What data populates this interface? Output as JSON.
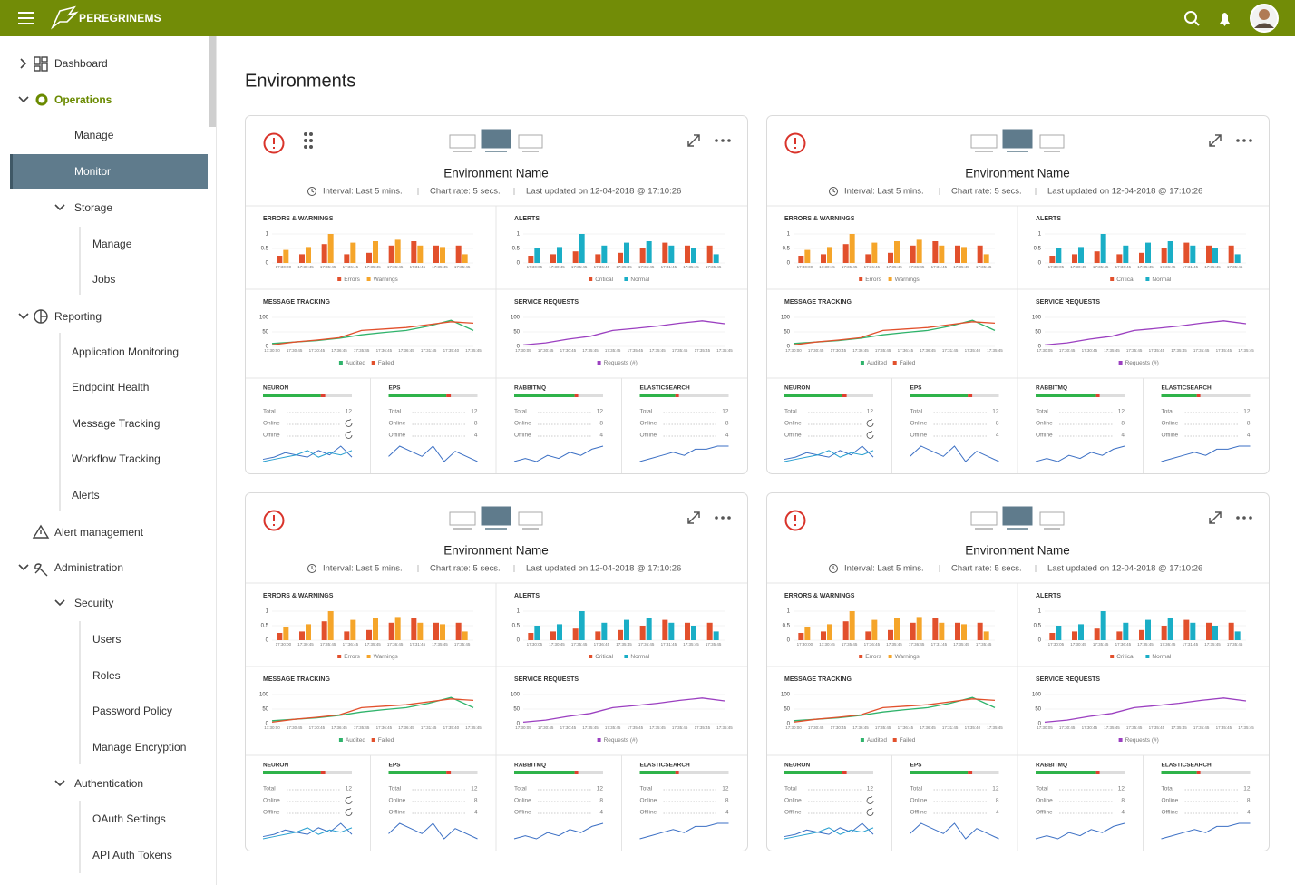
{
  "header": {
    "brand": "PEREGRINEMS"
  },
  "sidebar": {
    "items": [
      "Dashboard",
      "Operations",
      "Manage",
      "Monitor",
      "Storage",
      "Manage",
      "Jobs",
      "Reporting",
      "Application Monitoring",
      "Endpoint Health",
      "Message Tracking",
      "Workflow Tracking",
      "Alerts",
      "Alert management",
      "Administration",
      "Security",
      "Users",
      "Roles",
      "Password Policy",
      "Manage Encryption",
      "Authentication",
      "OAuth Settings",
      "API Auth Tokens"
    ]
  },
  "page_title": "Environments",
  "environment_card": {
    "title": "Environment Name",
    "interval": "Interval: Last 5 mins.",
    "chart_rate": "Chart rate: 5 secs.",
    "updated": "Last updated on 12-04-2018 @ 17:10:26",
    "charts": [
      {
        "type": "bar",
        "title": "ERRORS & WARNINGS",
        "categories": [
          "17:30:00",
          "17:30:45",
          "17:35:45",
          "17:36:45",
          "17:35:45",
          "17:36:45",
          "17:31:45",
          "17:35:45",
          "17:35:45"
        ],
        "series": [
          {
            "name": "Errors",
            "color": "#e2502c",
            "values": [
              0.25,
              0.3,
              0.65,
              0.3,
              0.35,
              0.6,
              0.75,
              0.6,
              0.6
            ]
          },
          {
            "name": "Warnings",
            "color": "#f5a52a",
            "values": [
              0.45,
              0.55,
              1,
              0.7,
              0.75,
              0.8,
              0.6,
              0.55,
              0.3
            ]
          }
        ],
        "ylim": [
          0,
          1
        ],
        "yticks": [
          0,
          0.5,
          1
        ]
      },
      {
        "type": "bar",
        "title": "ALERTS",
        "categories": [
          "17:30:05",
          "17:30:45",
          "17:35:45",
          "17:36:45",
          "17:35:45",
          "17:36:45",
          "17:31:45",
          "17:35:45",
          "17:35:45"
        ],
        "series": [
          {
            "name": "Critical",
            "color": "#e2502c",
            "values": [
              0.25,
              0.3,
              0.4,
              0.3,
              0.35,
              0.5,
              0.7,
              0.6,
              0.6
            ]
          },
          {
            "name": "Normal",
            "color": "#1aaec6",
            "values": [
              0.5,
              0.55,
              1,
              0.6,
              0.7,
              0.75,
              0.6,
              0.5,
              0.3
            ]
          }
        ],
        "ylim": [
          0,
          1
        ],
        "yticks": [
          0,
          0.5,
          1
        ]
      },
      {
        "type": "line",
        "title": "MESSAGE TRACKING",
        "categories": [
          "17:30:00",
          "17:30:45",
          "17:30:45",
          "17:36:45",
          "17:35:45",
          "17:36:45",
          "17:36:45",
          "17:31:45",
          "17:35:40",
          "17:35:45"
        ],
        "series": [
          {
            "name": "Audited",
            "color": "#2fb36b",
            "values": [
              10,
              15,
              20,
              28,
              40,
              48,
              55,
              70,
              90,
              55
            ]
          },
          {
            "name": "Failed",
            "color": "#e2502c",
            "values": [
              5,
              15,
              22,
              30,
              55,
              60,
              65,
              75,
              85,
              80
            ]
          }
        ],
        "ylim": [
          0,
          100
        ],
        "yticks": [
          0,
          50,
          100
        ]
      },
      {
        "type": "line",
        "title": "SERVICE REQUESTS",
        "categories": [
          "17:30:05",
          "17:30:45",
          "17:30:45",
          "17:35:45",
          "17:35:45",
          "17:35:45",
          "17:35:45",
          "17:35:45",
          "17:35:45",
          "17:35:45"
        ],
        "series": [
          {
            "name": "Requests (#)",
            "color": "#9b3fc0",
            "values": [
              5,
              12,
              25,
              35,
              55,
              62,
              70,
              80,
              88,
              78
            ]
          }
        ],
        "ylim": [
          0,
          100
        ],
        "yticks": [
          0,
          50,
          100
        ]
      }
    ],
    "status": [
      {
        "title": "NEURON",
        "bar": [
          65,
          5
        ],
        "rows": [
          {
            "label": "Total",
            "value": 12
          },
          {
            "label": "Online"
          },
          {
            "label": "Offline"
          }
        ],
        "spark": [
          [
            2,
            3,
            5,
            4,
            3,
            6,
            4,
            8,
            3
          ],
          [
            1,
            2,
            3,
            4,
            6,
            3,
            5,
            4,
            6
          ]
        ]
      },
      {
        "title": "EPS",
        "bar": [
          65,
          5
        ],
        "rows": [
          {
            "label": "Total",
            "value": 12
          },
          {
            "label": "Online",
            "value": 8
          },
          {
            "label": "Offline",
            "value": 4
          }
        ],
        "spark": [
          [
            3,
            5,
            4,
            3,
            5,
            2,
            4,
            3,
            2
          ]
        ]
      },
      {
        "title": "RABBITMQ",
        "bar": [
          68,
          4
        ],
        "rows": [
          {
            "label": "Total",
            "value": 12
          },
          {
            "label": "Online",
            "value": 8
          },
          {
            "label": "Offline",
            "value": 4
          }
        ],
        "spark": [
          [
            2,
            3,
            2,
            4,
            3,
            5,
            4,
            6,
            7
          ]
        ]
      },
      {
        "title": "ELASTICSEARCH",
        "bar": [
          40,
          4
        ],
        "rows": [
          {
            "label": "Total",
            "value": 12
          },
          {
            "label": "Online",
            "value": 8
          },
          {
            "label": "Offline",
            "value": 4
          }
        ],
        "spark": [
          [
            1,
            2,
            3,
            4,
            3,
            5,
            5,
            6,
            6
          ]
        ]
      }
    ]
  }
}
